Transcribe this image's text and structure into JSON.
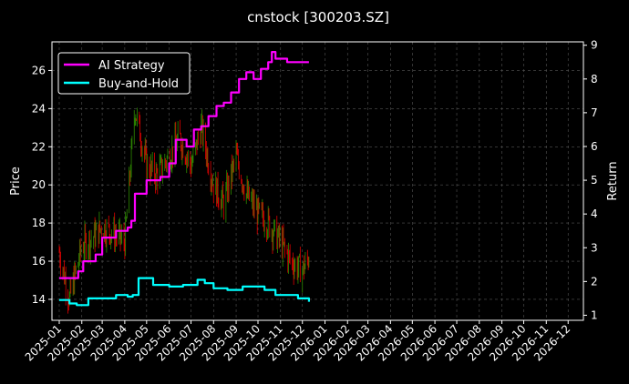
{
  "chart_data": {
    "type": "line",
    "title": "cnstock [300203.SZ]",
    "ylabel_left": "Price",
    "ylabel_right": "Return",
    "grid": true,
    "legend_position": "top-left",
    "background": "#000000",
    "candle_up_color": "#2e8b00",
    "candle_down_color": "#e00000",
    "x_range": [
      "2024-12-22",
      "2026-12-22"
    ],
    "y_left_range": [
      12.9,
      27.5
    ],
    "y_right_range": [
      0.85,
      9.1
    ],
    "x_ticks": [
      "2025-01",
      "2025-02",
      "2025-03",
      "2025-04",
      "2025-05",
      "2025-06",
      "2025-07",
      "2025-08",
      "2025-09",
      "2025-10",
      "2025-11",
      "2025-12",
      "2026-01",
      "2026-02",
      "2026-03",
      "2026-04",
      "2026-05",
      "2026-06",
      "2026-07",
      "2026-08",
      "2026-09",
      "2026-10",
      "2026-11",
      "2026-12"
    ],
    "y_left_ticks": [
      "14",
      "16",
      "18",
      "20",
      "22",
      "24",
      "26"
    ],
    "y_right_ticks": [
      "1",
      "2",
      "3",
      "4",
      "5",
      "6",
      "7",
      "8",
      "9"
    ],
    "price_series": {
      "dates": [
        "2025-01-01",
        "2025-01-15",
        "2025-02-01",
        "2025-02-15",
        "2025-03-01",
        "2025-03-15",
        "2025-04-01",
        "2025-04-15",
        "2025-05-01",
        "2025-05-15",
        "2025-06-01",
        "2025-06-15",
        "2025-07-01",
        "2025-07-15",
        "2025-08-01",
        "2025-08-15",
        "2025-09-01",
        "2025-09-15",
        "2025-10-01",
        "2025-10-15",
        "2025-11-01",
        "2025-11-15",
        "2025-12-01",
        "2025-12-10"
      ],
      "close": [
        16.5,
        14.0,
        16.8,
        17.2,
        17.8,
        17.5,
        17.0,
        24.0,
        21.0,
        20.5,
        21.5,
        22.5,
        21.0,
        23.0,
        20.0,
        19.0,
        21.5,
        19.5,
        18.5,
        18.0,
        17.0,
        16.0,
        15.5,
        16.2
      ]
    },
    "series": [
      {
        "name": "AI Strategy",
        "color": "#ff00ff",
        "axis": "right",
        "dates": [
          "2025-01-01",
          "2025-01-20",
          "2025-01-27",
          "2025-02-03",
          "2025-02-20",
          "2025-03-01",
          "2025-03-20",
          "2025-04-05",
          "2025-04-10",
          "2025-04-15",
          "2025-05-01",
          "2025-05-20",
          "2025-06-01",
          "2025-06-10",
          "2025-06-25",
          "2025-07-05",
          "2025-07-15",
          "2025-07-25",
          "2025-08-05",
          "2025-08-15",
          "2025-08-25",
          "2025-09-05",
          "2025-09-15",
          "2025-09-25",
          "2025-10-05",
          "2025-10-15",
          "2025-10-20",
          "2025-10-25",
          "2025-11-01",
          "2025-11-10",
          "2025-11-20",
          "2025-12-01",
          "2025-12-10"
        ],
        "values": [
          2.1,
          2.1,
          2.3,
          2.6,
          2.8,
          3.3,
          3.5,
          3.6,
          3.8,
          4.6,
          5.0,
          5.1,
          5.5,
          6.2,
          6.0,
          6.5,
          6.6,
          6.9,
          7.2,
          7.3,
          7.6,
          8.0,
          8.2,
          8.0,
          8.3,
          8.5,
          8.8,
          8.6,
          8.6,
          8.5,
          8.5,
          8.5,
          8.5
        ]
      },
      {
        "name": "Buy-and-Hold",
        "color": "#00ffff",
        "axis": "right",
        "dates": [
          "2025-01-01",
          "2025-01-15",
          "2025-01-25",
          "2025-02-10",
          "2025-03-01",
          "2025-03-20",
          "2025-04-05",
          "2025-04-12",
          "2025-04-20",
          "2025-05-10",
          "2025-06-01",
          "2025-06-20",
          "2025-07-10",
          "2025-07-20",
          "2025-08-01",
          "2025-08-20",
          "2025-09-10",
          "2025-09-25",
          "2025-10-10",
          "2025-10-25",
          "2025-11-10",
          "2025-11-25",
          "2025-12-10"
        ],
        "values": [
          1.45,
          1.35,
          1.3,
          1.5,
          1.5,
          1.6,
          1.55,
          1.6,
          2.1,
          1.9,
          1.85,
          1.9,
          2.05,
          1.95,
          1.8,
          1.75,
          1.85,
          1.85,
          1.75,
          1.6,
          1.6,
          1.5,
          1.4
        ]
      }
    ]
  }
}
